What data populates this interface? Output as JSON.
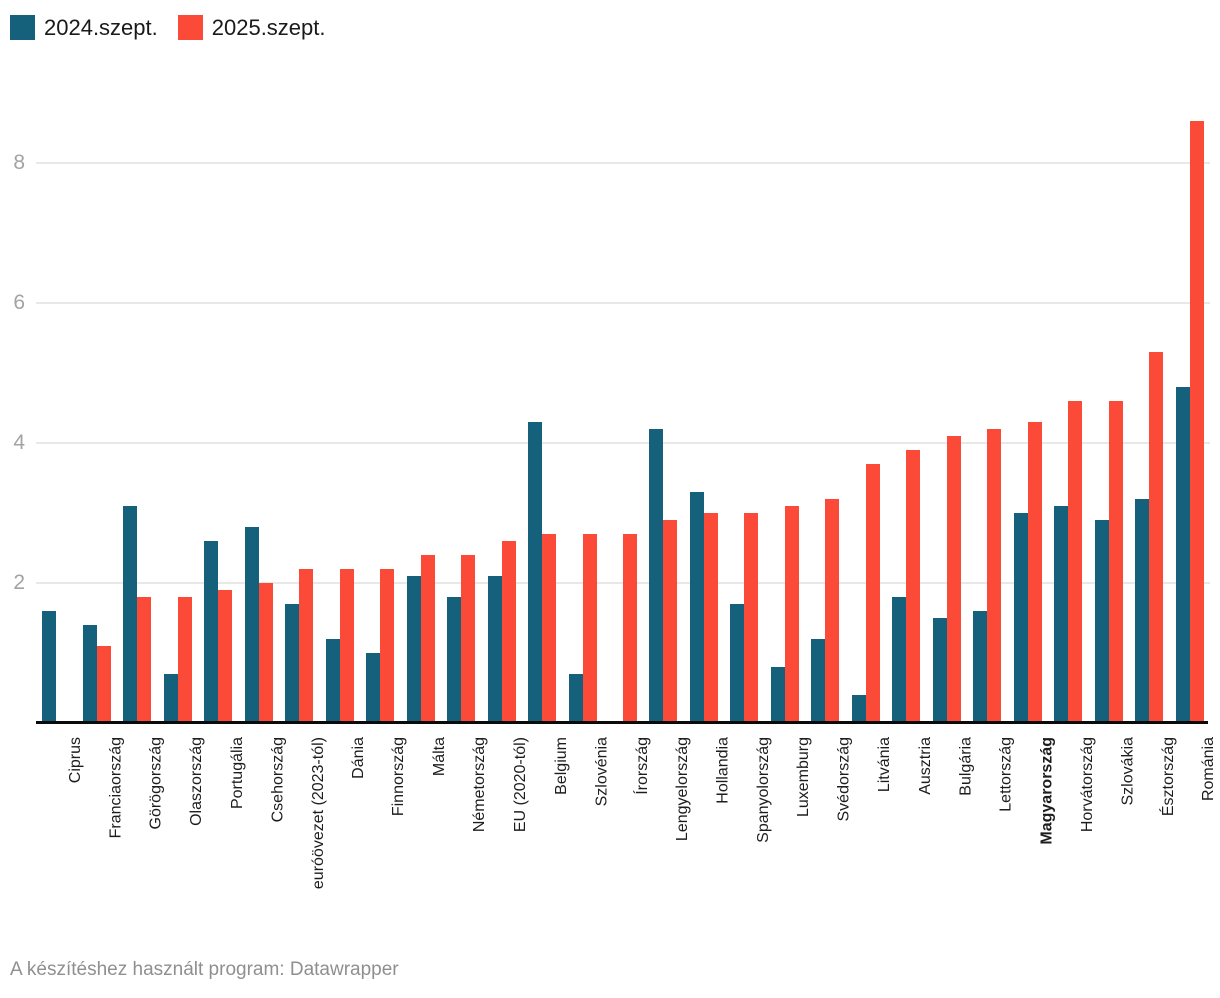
{
  "legend": {
    "items": [
      {
        "label": "2024.szept.",
        "color": "#15607a"
      },
      {
        "label": "2025.szept.",
        "color": "#fc4a38"
      }
    ]
  },
  "footer": {
    "text": "A készítéshez használt program: Datawrapper"
  },
  "chart_data": {
    "type": "bar",
    "title": "",
    "xlabel": "",
    "ylabel": "",
    "categories": [
      "Ciprus",
      "Franciaország",
      "Görögország",
      "Olaszország",
      "Portugália",
      "Csehország",
      "euróövezet (2023-tól)",
      "Dánia",
      "Finnország",
      "Málta",
      "Németország",
      "EU (2020-tól)",
      "Belgium",
      "Szlovénia",
      "Írország",
      "Lengyelország",
      "Hollandia",
      "Spanyolország",
      "Luxemburg",
      "Svédország",
      "Litvánia",
      "Ausztria",
      "Bulgária",
      "Lettország",
      "Magyarország",
      "Horvátország",
      "Szlovákia",
      "Észtország",
      "Románia"
    ],
    "bold_category": "Magyarország",
    "series": [
      {
        "name": "2024.szept.",
        "color": "#15607a",
        "values": [
          1.6,
          1.4,
          3.1,
          0.7,
          2.6,
          2.8,
          1.7,
          1.2,
          1.0,
          2.1,
          1.8,
          2.1,
          4.3,
          0.7,
          0.0,
          4.2,
          3.3,
          1.7,
          0.8,
          1.2,
          0.4,
          1.8,
          1.5,
          1.6,
          3.0,
          3.1,
          2.9,
          3.2,
          4.8
        ]
      },
      {
        "name": "2025.szept.",
        "color": "#fc4a38",
        "values": [
          0.0,
          1.1,
          1.8,
          1.8,
          1.9,
          2.0,
          2.2,
          2.2,
          2.2,
          2.4,
          2.4,
          2.6,
          2.7,
          2.7,
          2.7,
          2.9,
          3.0,
          3.0,
          3.1,
          3.2,
          3.7,
          3.9,
          4.1,
          4.2,
          4.3,
          4.6,
          4.6,
          5.3,
          8.6
        ]
      }
    ],
    "yticks": [
      2,
      4,
      6,
      8
    ],
    "ylim": [
      0,
      9
    ],
    "grid": true,
    "legend_position": "top-left"
  }
}
